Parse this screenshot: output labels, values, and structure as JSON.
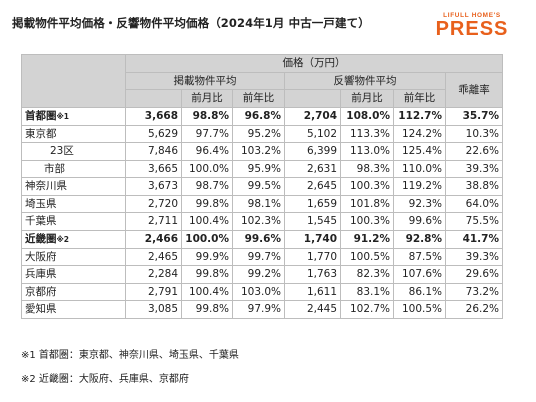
{
  "title": "掲載物件平均価格・反響物件平均価格（2024年1月 中古一戸建て）",
  "logo": {
    "top": "LIFULL HOME'S",
    "main": "PRESS"
  },
  "header": {
    "price": "価格（万円）",
    "listed": "掲載物件平均",
    "inquiry": "反響物件平均",
    "divergence": "乖離率",
    "mom": "前月比",
    "yoy": "前年比"
  },
  "rows": [
    {
      "label": "首都圏",
      "note": "※1",
      "bold": true,
      "indent": 0,
      "lp": "3,668",
      "lm": "98.8%",
      "ly": "96.8%",
      "ip": "2,704",
      "im": "108.0%",
      "iy": "112.7%",
      "d": "35.7%"
    },
    {
      "label": "東京都",
      "bold": false,
      "indent": 0,
      "lp": "5,629",
      "lm": "97.7%",
      "ly": "95.2%",
      "ip": "5,102",
      "im": "113.3%",
      "iy": "124.2%",
      "d": "10.3%"
    },
    {
      "label": "23区",
      "bold": false,
      "indent": 2,
      "lp": "7,846",
      "lm": "96.4%",
      "ly": "103.2%",
      "ip": "6,399",
      "im": "113.0%",
      "iy": "125.4%",
      "d": "22.6%"
    },
    {
      "label": "市部",
      "bold": false,
      "indent": 1,
      "lp": "3,665",
      "lm": "100.0%",
      "ly": "95.9%",
      "ip": "2,631",
      "im": "98.3%",
      "iy": "110.0%",
      "d": "39.3%"
    },
    {
      "label": "神奈川県",
      "bold": false,
      "indent": 0,
      "lp": "3,673",
      "lm": "98.7%",
      "ly": "99.5%",
      "ip": "2,645",
      "im": "100.3%",
      "iy": "119.2%",
      "d": "38.8%"
    },
    {
      "label": "埼玉県",
      "bold": false,
      "indent": 0,
      "lp": "2,720",
      "lm": "99.8%",
      "ly": "98.1%",
      "ip": "1,659",
      "im": "101.8%",
      "iy": "92.3%",
      "d": "64.0%"
    },
    {
      "label": "千葉県",
      "bold": false,
      "indent": 0,
      "lp": "2,711",
      "lm": "100.4%",
      "ly": "102.3%",
      "ip": "1,545",
      "im": "100.3%",
      "iy": "99.6%",
      "d": "75.5%"
    },
    {
      "label": "近畿圏",
      "note": "※2",
      "bold": true,
      "indent": 0,
      "lp": "2,466",
      "lm": "100.0%",
      "ly": "99.6%",
      "ip": "1,740",
      "im": "91.2%",
      "iy": "92.8%",
      "d": "41.7%"
    },
    {
      "label": "大阪府",
      "bold": false,
      "indent": 0,
      "lp": "2,465",
      "lm": "99.9%",
      "ly": "99.7%",
      "ip": "1,770",
      "im": "100.5%",
      "iy": "87.5%",
      "d": "39.3%"
    },
    {
      "label": "兵庫県",
      "bold": false,
      "indent": 0,
      "lp": "2,284",
      "lm": "99.8%",
      "ly": "99.2%",
      "ip": "1,763",
      "im": "82.3%",
      "iy": "107.6%",
      "d": "29.6%"
    },
    {
      "label": "京都府",
      "bold": false,
      "indent": 0,
      "lp": "2,791",
      "lm": "100.4%",
      "ly": "103.0%",
      "ip": "1,611",
      "im": "83.1%",
      "iy": "86.1%",
      "d": "73.2%"
    },
    {
      "label": "愛知県",
      "bold": false,
      "indent": 0,
      "sep": true,
      "lp": "3,085",
      "lm": "99.8%",
      "ly": "97.9%",
      "ip": "2,445",
      "im": "102.7%",
      "iy": "100.5%",
      "d": "26.2%"
    }
  ],
  "notes": [
    "※1 首都圏：東京都、神奈川県、埼玉県、千葉県",
    "※2 近畿圏：大阪府、兵庫県、京都府"
  ]
}
